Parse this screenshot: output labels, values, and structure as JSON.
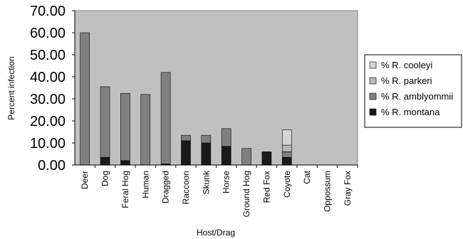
{
  "chart_data": {
    "type": "bar",
    "stacked": true,
    "xlabel": "Host/Drag",
    "ylabel": "Percent infection",
    "ylim": [
      0,
      70
    ],
    "yticks": [
      "0.00",
      "10.00",
      "20.00",
      "30.00",
      "40.00",
      "50.00",
      "60.00",
      "70.00"
    ],
    "grid": false,
    "legend_position": "right",
    "categories": [
      "Deer",
      "Dog",
      "Feral Hog",
      "Human",
      "Dragged",
      "Raccoon",
      "Skunk",
      "Horse",
      "Ground Hog",
      "Red Fox",
      "Coyote",
      "Cat",
      "Oppossum",
      "Gray Fox"
    ],
    "series": [
      {
        "name": "% R. montana",
        "color": "#1a1a1a",
        "values": [
          0,
          3.5,
          2.0,
          0,
          0.5,
          11.0,
          10.0,
          8.5,
          0,
          6.0,
          3.5,
          0,
          0,
          0
        ]
      },
      {
        "name": "% R. amblyommii",
        "color": "#808080",
        "values": [
          60.0,
          32.0,
          30.5,
          32.0,
          41.5,
          2.5,
          3.5,
          8.0,
          7.5,
          0,
          2.5,
          0,
          0,
          0
        ]
      },
      {
        "name": "% R. parkeri",
        "color": "#b8b8b8",
        "values": [
          0,
          0,
          0,
          0,
          0,
          0,
          0,
          0,
          0,
          0,
          3.0,
          0,
          0,
          0
        ]
      },
      {
        "name": "% R. cooleyi",
        "color": "#d4d4d4",
        "values": [
          0,
          0,
          0,
          0,
          0,
          0,
          0,
          0,
          0,
          0,
          7.0,
          0,
          0,
          0
        ]
      }
    ],
    "legend_order": [
      "% R. cooleyi",
      "% R. parkeri",
      "% R. amblyommii",
      "% R. montana"
    ],
    "plot_background": "#c0c0c0"
  }
}
